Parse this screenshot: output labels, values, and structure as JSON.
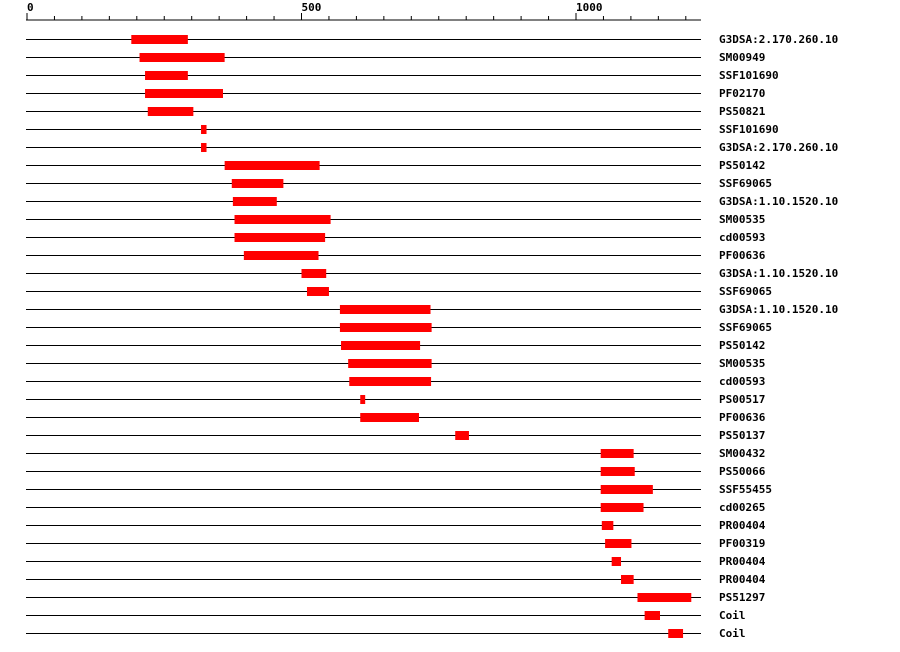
{
  "chart_data": {
    "type": "bar",
    "xlim": [
      0,
      1230
    ],
    "axis_tick_labels": [
      "0",
      "500",
      "1000"
    ],
    "major_ticks": [
      0,
      500,
      1000
    ],
    "minor_tick_step": 50,
    "bar_color": "#ff0000",
    "tracks": [
      {
        "label": "G3DSA:2.170.260.10",
        "start": 190,
        "end": 293
      },
      {
        "label": "SM00949",
        "start": 205,
        "end": 360
      },
      {
        "label": "SSF101690",
        "start": 215,
        "end": 293
      },
      {
        "label": "PF02170",
        "start": 215,
        "end": 357
      },
      {
        "label": "PS50821",
        "start": 220,
        "end": 303
      },
      {
        "label": "SSF101690",
        "start": 317,
        "end": 327
      },
      {
        "label": "G3DSA:2.170.260.10",
        "start": 317,
        "end": 327
      },
      {
        "label": "PS50142",
        "start": 360,
        "end": 533
      },
      {
        "label": "SSF69065",
        "start": 373,
        "end": 467
      },
      {
        "label": "G3DSA:1.10.1520.10",
        "start": 375,
        "end": 455
      },
      {
        "label": "SM00535",
        "start": 378,
        "end": 553
      },
      {
        "label": "cd00593",
        "start": 378,
        "end": 543
      },
      {
        "label": "PF00636",
        "start": 395,
        "end": 531
      },
      {
        "label": "G3DSA:1.10.1520.10",
        "start": 500,
        "end": 545
      },
      {
        "label": "SSF69065",
        "start": 510,
        "end": 550
      },
      {
        "label": "G3DSA:1.10.1520.10",
        "start": 570,
        "end": 735
      },
      {
        "label": "SSF69065",
        "start": 570,
        "end": 737
      },
      {
        "label": "PS50142",
        "start": 572,
        "end": 716
      },
      {
        "label": "SM00535",
        "start": 585,
        "end": 737
      },
      {
        "label": "cd00593",
        "start": 587,
        "end": 736
      },
      {
        "label": "PS00517",
        "start": 607,
        "end": 616
      },
      {
        "label": "PF00636",
        "start": 607,
        "end": 714
      },
      {
        "label": "PS50137",
        "start": 780,
        "end": 805
      },
      {
        "label": "SM00432",
        "start": 1045,
        "end": 1105
      },
      {
        "label": "PS50066",
        "start": 1045,
        "end": 1107
      },
      {
        "label": "SSF55455",
        "start": 1045,
        "end": 1140
      },
      {
        "label": "cd00265",
        "start": 1045,
        "end": 1123
      },
      {
        "label": "PR00404",
        "start": 1047,
        "end": 1068
      },
      {
        "label": "PF00319",
        "start": 1053,
        "end": 1101
      },
      {
        "label": "PR00404",
        "start": 1065,
        "end": 1082
      },
      {
        "label": "PR00404",
        "start": 1082,
        "end": 1105
      },
      {
        "label": "PS51297",
        "start": 1112,
        "end": 1210
      },
      {
        "label": "Coil",
        "start": 1125,
        "end": 1153
      },
      {
        "label": "Coil",
        "start": 1168,
        "end": 1195
      }
    ]
  }
}
